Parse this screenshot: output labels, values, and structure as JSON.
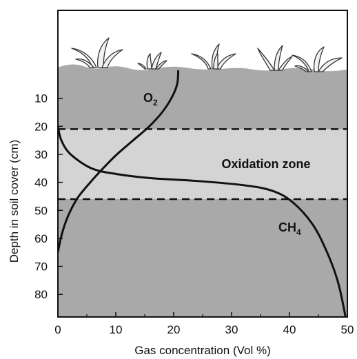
{
  "chart_data": {
    "type": "line",
    "title": "",
    "xlabel": "Gas concentration (Vol %)",
    "ylabel": "Depth in soil cover (cm)",
    "xlim": [
      0,
      50
    ],
    "ylim": [
      0,
      90
    ],
    "y_inverted": true,
    "x_ticks": [
      0,
      10,
      20,
      30,
      40,
      50
    ],
    "y_ticks": [
      10,
      20,
      30,
      40,
      50,
      60,
      70,
      80
    ],
    "zones": [
      {
        "label": "Oxidation zone",
        "from_depth": 21,
        "to_depth": 46
      }
    ],
    "series": [
      {
        "name": "O2",
        "points": [
          [
            20.8,
            0
          ],
          [
            20.6,
            5
          ],
          [
            19.6,
            10
          ],
          [
            18.0,
            15
          ],
          [
            15.8,
            20
          ],
          [
            13.0,
            25
          ],
          [
            10.2,
            30
          ],
          [
            7.8,
            35
          ],
          [
            5.6,
            40
          ],
          [
            3.6,
            45
          ],
          [
            2.2,
            50
          ],
          [
            1.2,
            55
          ],
          [
            0.5,
            60
          ],
          [
            0,
            65
          ]
        ]
      },
      {
        "name": "CH4",
        "points": [
          [
            0,
            20
          ],
          [
            0.6,
            25
          ],
          [
            2.2,
            30
          ],
          [
            5.8,
            35
          ],
          [
            10,
            37
          ],
          [
            16,
            38.5
          ],
          [
            24,
            39.5
          ],
          [
            32,
            41
          ],
          [
            37,
            43
          ],
          [
            40.5,
            47
          ],
          [
            44,
            55
          ],
          [
            46.5,
            65
          ],
          [
            48.3,
            75
          ],
          [
            49.4,
            85
          ],
          [
            49.8,
            90
          ]
        ]
      }
    ]
  },
  "annotations": {
    "o2": {
      "main": "O",
      "sub": "2"
    },
    "ch4": {
      "main": "CH",
      "sub": "4"
    },
    "zone": "Oxidation zone"
  },
  "colors": {
    "soil": "#a9a9a9",
    "zone": "#d4d4d4",
    "curve": "#111111",
    "vegetation": "#f2f2f2"
  }
}
